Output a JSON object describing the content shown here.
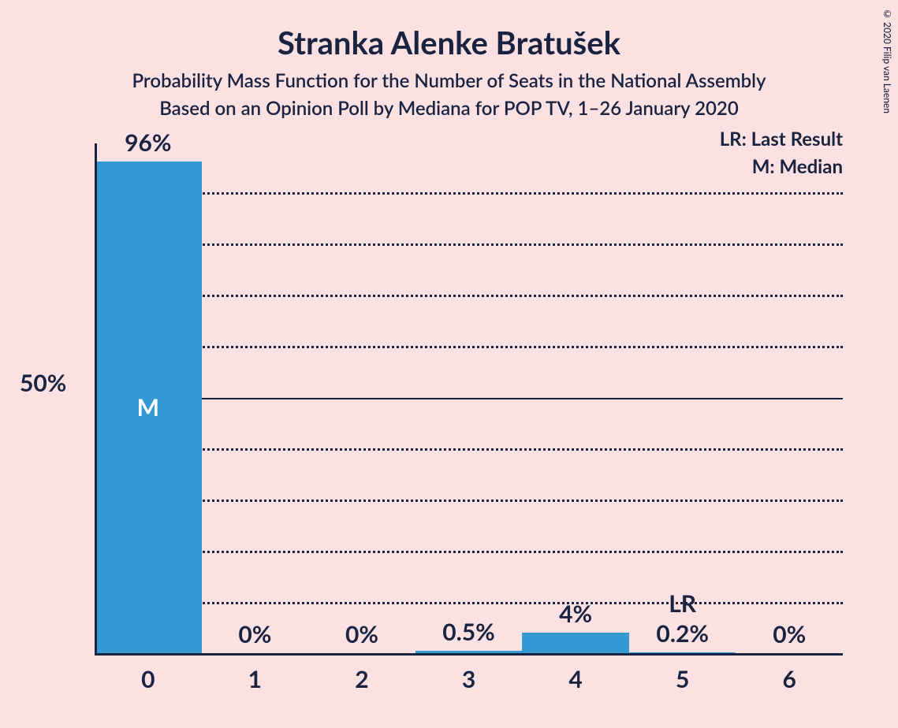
{
  "chart": {
    "type": "bar",
    "title": "Stranka Alenke Bratušek",
    "subtitle1": "Probability Mass Function for the Number of Seats in the National Assembly",
    "subtitle2": "Based on an Opinion Poll by Mediana for POP TV, 1–26 January 2020",
    "title_fontsize": 40,
    "subtitle_fontsize": 24,
    "background_color": "#fce1e2",
    "text_color": "#1a2340",
    "bar_color": "#3498d3",
    "grid_color": "#1a2340",
    "categories": [
      "0",
      "1",
      "2",
      "3",
      "4",
      "5",
      "6"
    ],
    "values_pct": [
      96,
      0,
      0,
      0.5,
      4,
      0.2,
      0
    ],
    "value_labels": [
      "96%",
      "0%",
      "0%",
      "0.5%",
      "4%",
      "0.2%",
      "0%"
    ],
    "markers": [
      {
        "index": 0,
        "label": "M",
        "position": "inside"
      },
      {
        "index": 5,
        "label": "LR",
        "position": "above"
      }
    ],
    "y_axis": {
      "max": 100,
      "label_at": 50,
      "label": "50%",
      "gridlines_pct": [
        10,
        20,
        30,
        40,
        50,
        60,
        70,
        80,
        90
      ],
      "solid_gridline_pct": 50
    },
    "legend": {
      "lr": "LR: Last Result",
      "m": "M: Median"
    },
    "fontsize_axis": 30,
    "fontsize_value": 30,
    "fontsize_legend": 24,
    "bar_width_ratio": 1.0
  },
  "copyright": "© 2020 Filip van Laenen"
}
